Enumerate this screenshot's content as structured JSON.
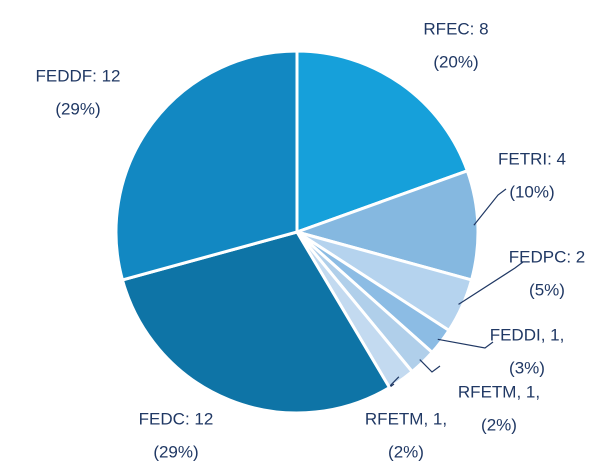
{
  "chart_data": {
    "type": "pie",
    "values": [
      8,
      4,
      2,
      1,
      1,
      1,
      12,
      12
    ],
    "value_labels": [
      [
        "RFEC: 8",
        "(20%)"
      ],
      [
        "FETRI: 4",
        "(10%)"
      ],
      [
        "FEDPC: 2",
        "(5%)"
      ],
      [
        "FEDDI, 1,",
        "(3%)"
      ],
      [
        "RFETM, 1,",
        "(2%)"
      ],
      [
        "RFETM, 1,",
        "(2%)"
      ],
      [
        "FEDC: 12",
        "(29%)"
      ],
      [
        "FEDDF: 12",
        "(29%)"
      ]
    ],
    "colors": [
      "#16a0da",
      "#85b8e0",
      "#b5d3ee",
      "#8cbce4",
      "#b0cfea",
      "#c3daf0",
      "#0e74a6",
      "#1288c2"
    ]
  }
}
